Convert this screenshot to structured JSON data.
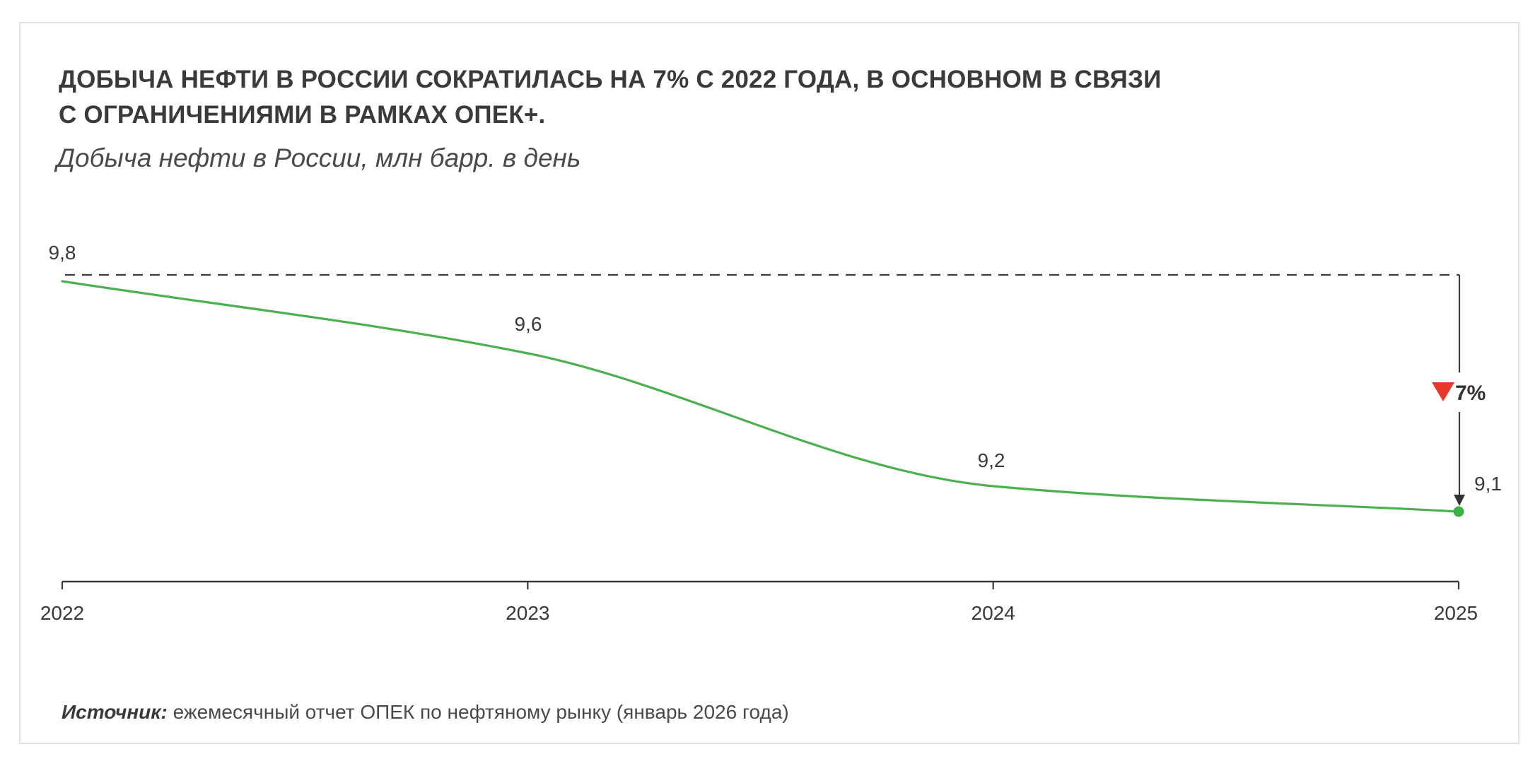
{
  "header": {
    "title_lines": [
      "ДОБЫЧА НЕФТИ В РОССИИ СОКРАТИЛАСЬ НА 7% С 2022 ГОДА, В ОСНОВНОМ В СВЯЗИ",
      "С ОГРАНИЧЕНИЯМИ В РАМКАХ ОПЕК+."
    ],
    "subtitle": "Добыча нефти в России, млн барр. в день"
  },
  "footer": {
    "source_label": "Источник:",
    "source_text": " ежемесячный отчет ОПЕК по нефтяному рынку (январь 2026 года)"
  },
  "colors": {
    "line": "#4caf50",
    "marker": "#3cb04a",
    "decline": "#e8382d",
    "text": "#3a3a3c",
    "axis": "#3a3a3c"
  },
  "chart_data": {
    "type": "line",
    "title": "ДОБЫЧА НЕФТИ В РОССИИ СОКРАТИЛАСЬ НА 7% С 2022 ГОДА, В ОСНОВНОМ В СВЯЗИ С ОГРАНИЧЕНИЯМИ В РАМКАХ ОПЕК+.",
    "subtitle": "Добыча нефти в России, млн барр. в день",
    "xlabel": "",
    "ylabel": "",
    "categories": [
      "2022",
      "2023",
      "2024",
      "2025"
    ],
    "series": [
      {
        "name": "Добыча нефти в России",
        "values": [
          9.8,
          9.6,
          9.2,
          9.1
        ],
        "labels": [
          "9,8",
          "9,6",
          "9,2",
          "9,1"
        ]
      }
    ],
    "ylim": [
      8.5,
      9.85
    ],
    "grid": false,
    "legend": "none",
    "reference_line": {
      "value": 9.8,
      "style": "dashed"
    },
    "annotation": {
      "from": 9.8,
      "to": 9.1,
      "text": "7%",
      "direction": "down"
    }
  }
}
